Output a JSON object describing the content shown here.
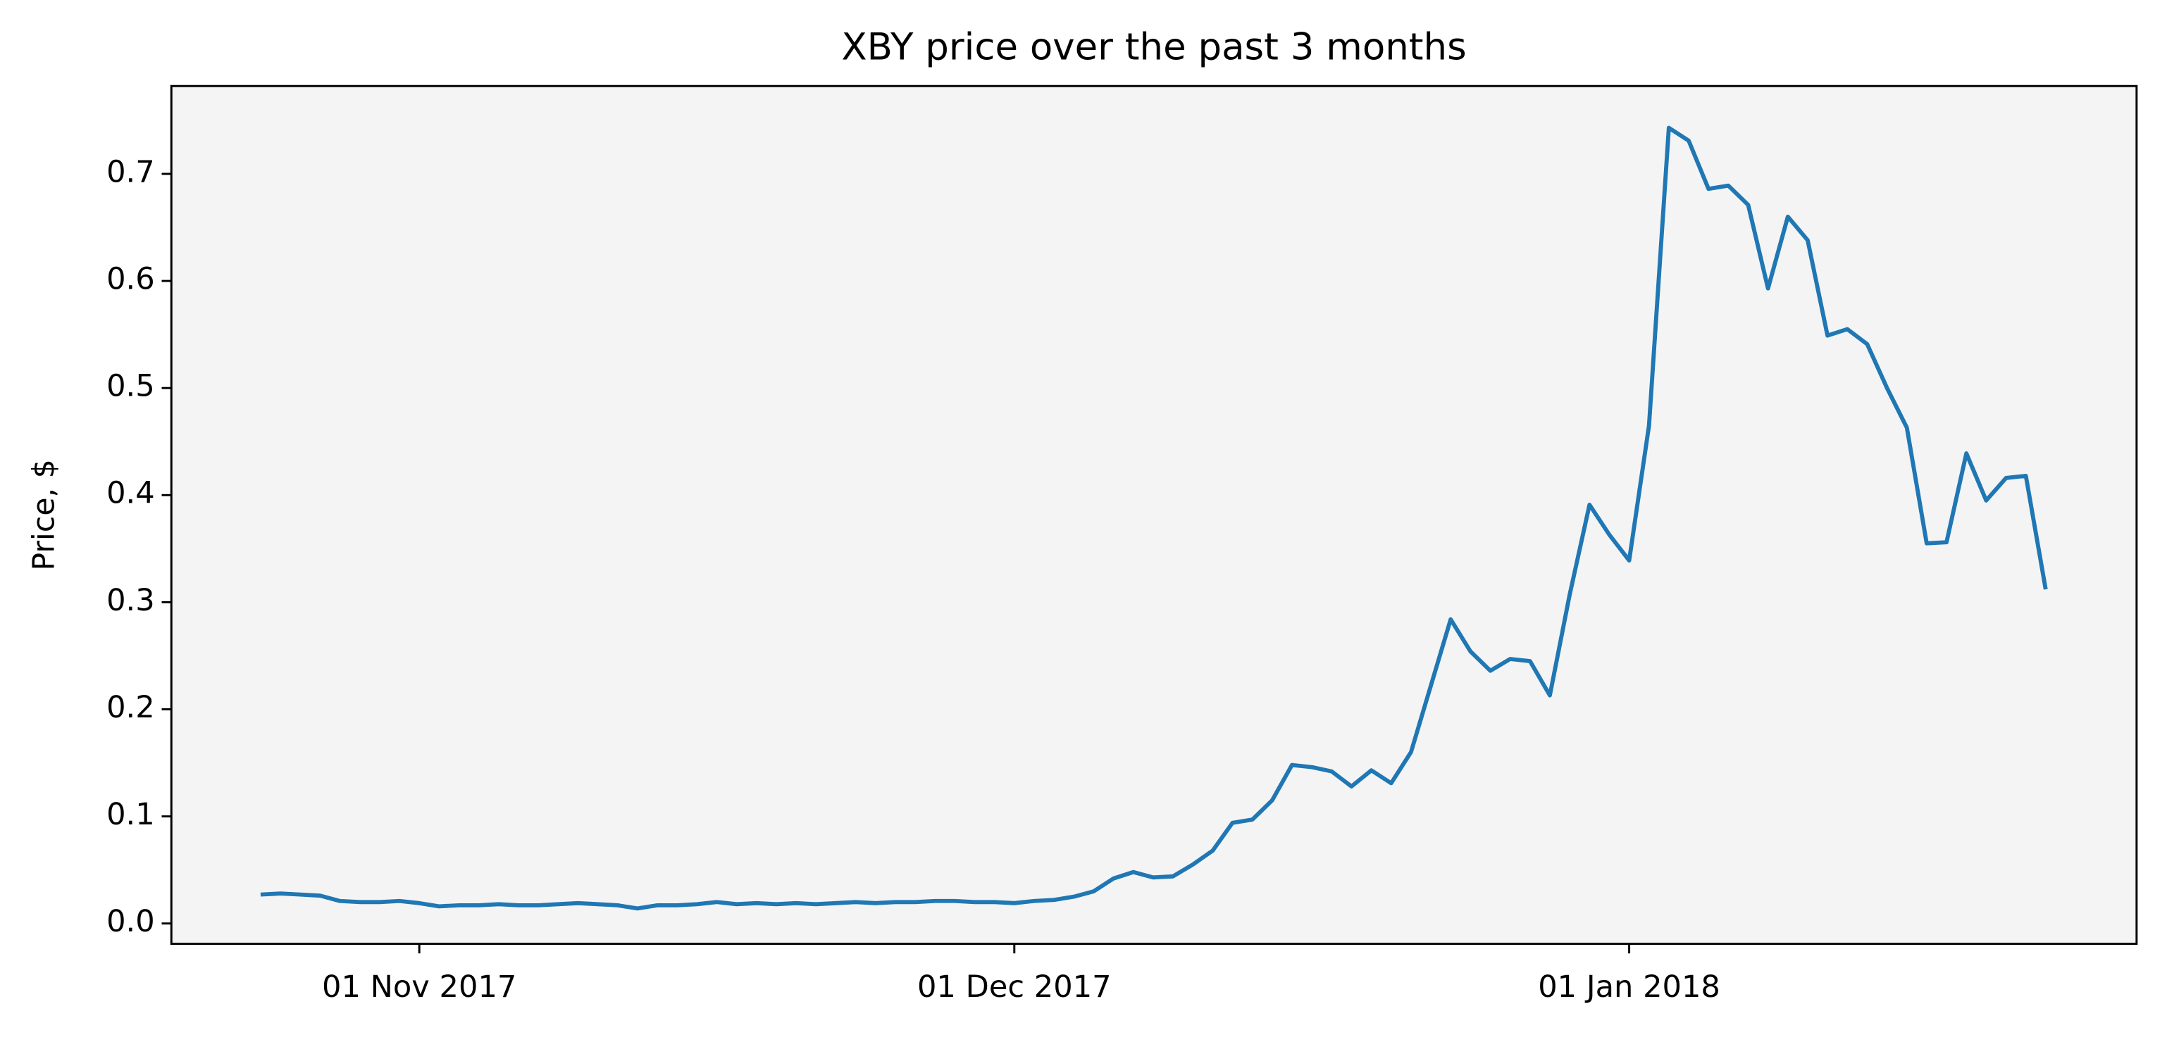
{
  "chart_data": {
    "type": "line",
    "title": "XBY price over the past 3 months",
    "ylabel": "Price, $",
    "x": [
      "2017-10-24",
      "2017-10-25",
      "2017-10-26",
      "2017-10-27",
      "2017-10-28",
      "2017-10-29",
      "2017-10-30",
      "2017-10-31",
      "2017-11-01",
      "2017-11-02",
      "2017-11-03",
      "2017-11-04",
      "2017-11-05",
      "2017-11-06",
      "2017-11-07",
      "2017-11-08",
      "2017-11-09",
      "2017-11-10",
      "2017-11-11",
      "2017-11-12",
      "2017-11-13",
      "2017-11-14",
      "2017-11-15",
      "2017-11-16",
      "2017-11-17",
      "2017-11-18",
      "2017-11-19",
      "2017-11-20",
      "2017-11-21",
      "2017-11-22",
      "2017-11-23",
      "2017-11-24",
      "2017-11-25",
      "2017-11-26",
      "2017-11-27",
      "2017-11-28",
      "2017-11-29",
      "2017-11-30",
      "2017-12-01",
      "2017-12-02",
      "2017-12-03",
      "2017-12-04",
      "2017-12-05",
      "2017-12-06",
      "2017-12-07",
      "2017-12-08",
      "2017-12-09",
      "2017-12-10",
      "2017-12-11",
      "2017-12-12",
      "2017-12-13",
      "2017-12-14",
      "2017-12-15",
      "2017-12-16",
      "2017-12-17",
      "2017-12-18",
      "2017-12-19",
      "2017-12-20",
      "2017-12-21",
      "2017-12-22",
      "2017-12-23",
      "2017-12-24",
      "2017-12-25",
      "2017-12-26",
      "2017-12-27",
      "2017-12-28",
      "2017-12-29",
      "2017-12-30",
      "2017-12-31",
      "2018-01-01",
      "2018-01-02",
      "2018-01-03",
      "2018-01-04",
      "2018-01-05",
      "2018-01-06",
      "2018-01-07",
      "2018-01-08",
      "2018-01-09",
      "2018-01-10",
      "2018-01-11",
      "2018-01-12",
      "2018-01-13",
      "2018-01-14",
      "2018-01-15",
      "2018-01-16",
      "2018-01-17",
      "2018-01-18",
      "2018-01-19",
      "2018-01-20",
      "2018-01-21",
      "2018-01-22"
    ],
    "series": [
      {
        "name": "XBY",
        "color": "#1f77b4",
        "values": [
          0.027,
          0.028,
          0.027,
          0.026,
          0.021,
          0.02,
          0.02,
          0.021,
          0.019,
          0.016,
          0.017,
          0.017,
          0.018,
          0.017,
          0.017,
          0.018,
          0.019,
          0.018,
          0.017,
          0.014,
          0.017,
          0.017,
          0.018,
          0.02,
          0.018,
          0.019,
          0.018,
          0.019,
          0.018,
          0.019,
          0.02,
          0.019,
          0.02,
          0.02,
          0.021,
          0.021,
          0.02,
          0.02,
          0.019,
          0.021,
          0.022,
          0.025,
          0.03,
          0.042,
          0.048,
          0.043,
          0.044,
          0.055,
          0.068,
          0.094,
          0.097,
          0.115,
          0.148,
          0.146,
          0.142,
          0.128,
          0.143,
          0.131,
          0.16,
          0.222,
          0.284,
          0.254,
          0.236,
          0.247,
          0.245,
          0.213,
          0.307,
          0.391,
          0.363,
          0.339,
          0.465,
          0.743,
          0.731,
          0.686,
          0.689,
          0.671,
          0.593,
          0.66,
          0.638,
          0.549,
          0.555,
          0.541,
          0.5,
          0.463,
          0.355,
          0.356,
          0.439,
          0.395,
          0.416,
          0.418,
          0.312
        ]
      }
    ],
    "xlim": [
      "2017-10-19T12:00",
      "2018-01-26T14:00"
    ],
    "xticks": [
      {
        "value": "2017-11-01",
        "label": "01 Nov 2017"
      },
      {
        "value": "2017-12-01",
        "label": "01 Dec 2017"
      },
      {
        "value": "2018-01-01",
        "label": "01 Jan 2018"
      }
    ],
    "ylim": [
      -0.019,
      0.782
    ],
    "yticks": [
      {
        "value": 0,
        "label": "0.0"
      },
      0.1,
      0.2,
      0.3,
      0.4,
      0.5,
      0.6,
      0.7
    ]
  }
}
